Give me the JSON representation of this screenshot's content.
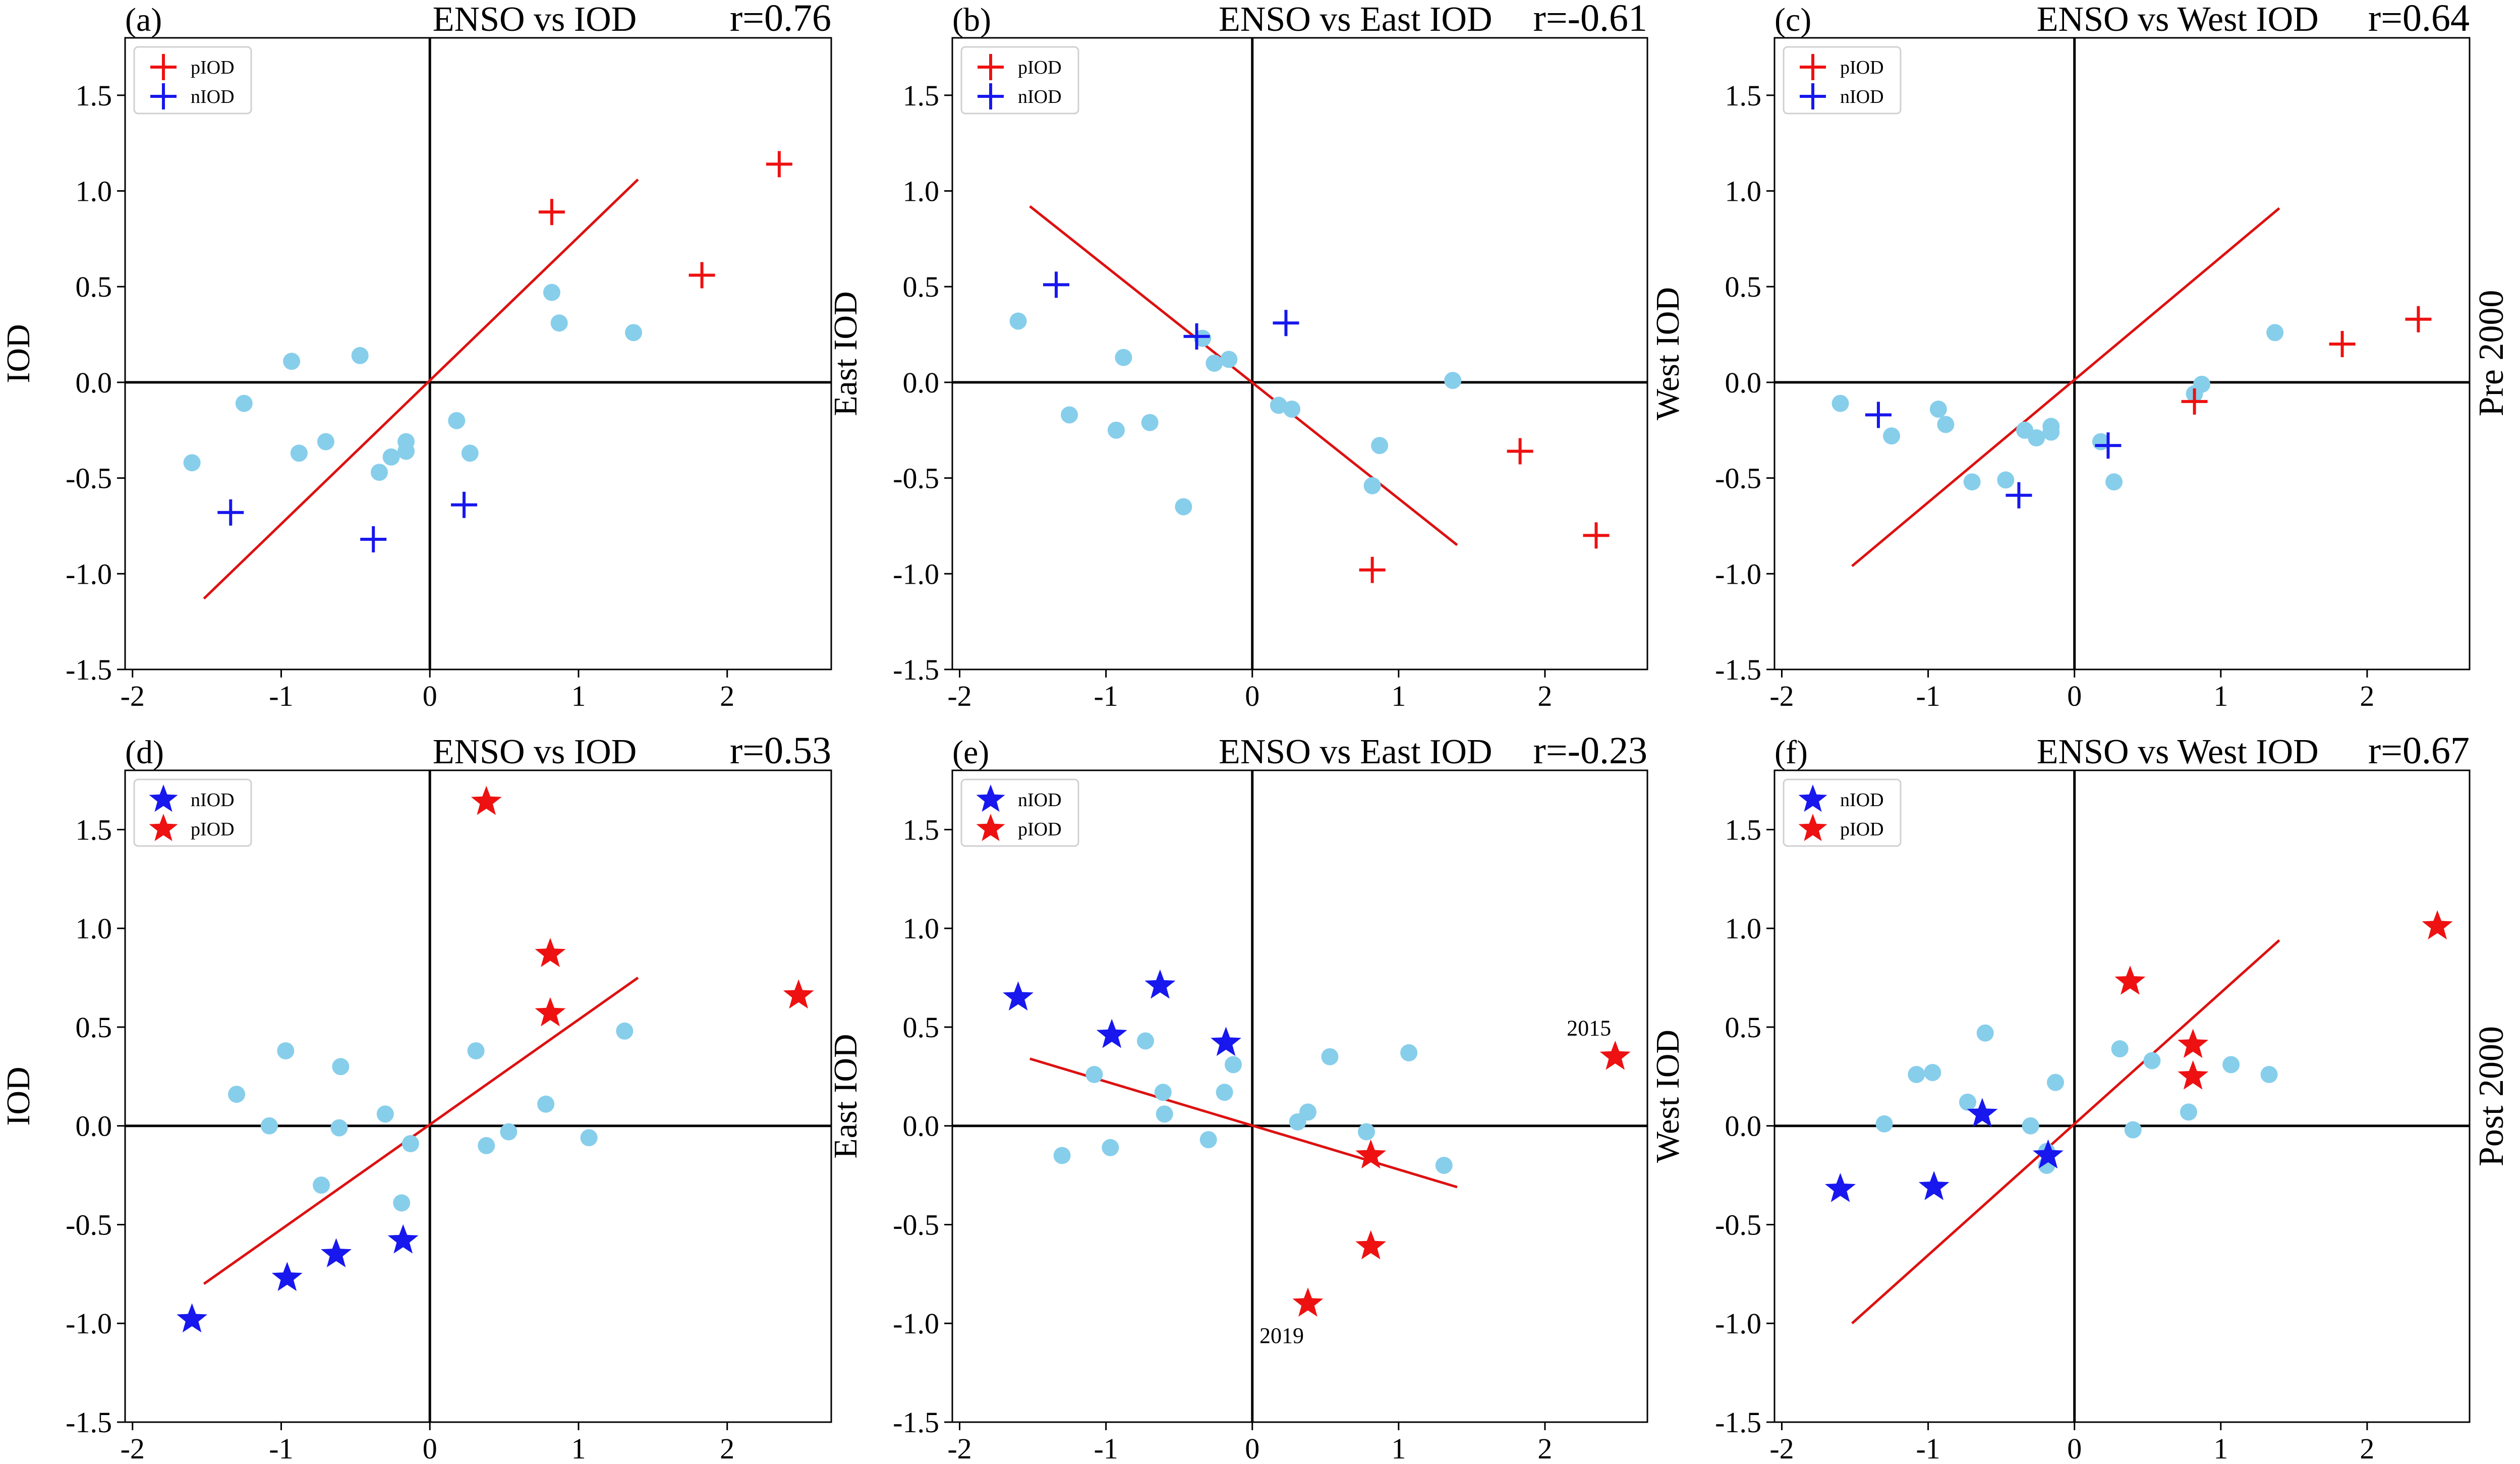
{
  "colors": {
    "pIOD": "#ee1111",
    "nIOD": "#1717ee",
    "other": "#87ceeb",
    "fit": "#dd1111",
    "axis": "#000000"
  },
  "row_labels": [
    "Pre 2000",
    "Post 2000"
  ],
  "chart_data": [
    {
      "panel": "(a)",
      "type": "scatter",
      "title": "ENSO vs IOD",
      "r_label": "r=0.76",
      "xlabel": "",
      "ylabel": "IOD",
      "xlim": [
        -2.05,
        2.7
      ],
      "ylim": [
        -1.5,
        1.8
      ],
      "xticks": [
        -2,
        -1,
        0,
        1,
        2
      ],
      "yticks": [
        -1.5,
        -1.0,
        -0.5,
        0.0,
        0.5,
        1.0,
        1.5
      ],
      "xtick_labels": [
        "-2",
        "-1",
        "0",
        "1",
        "2"
      ],
      "ytick_labels": [
        "-1.5",
        "-1.0",
        "-0.5",
        "0.0",
        "0.5",
        "1.0",
        "1.5"
      ],
      "marker": "plus",
      "legend": [
        {
          "label": "pIOD",
          "color": "pIOD"
        },
        {
          "label": "nIOD",
          "color": "nIOD"
        }
      ],
      "fit": {
        "x": [
          -1.52,
          1.4
        ],
        "y": [
          -1.13,
          1.06
        ]
      },
      "series": [
        {
          "name": "pIOD",
          "points": [
            [
              0.82,
              0.89
            ],
            [
              1.83,
              0.56
            ],
            [
              2.35,
              1.14
            ]
          ]
        },
        {
          "name": "nIOD",
          "points": [
            [
              -1.34,
              -0.68
            ],
            [
              -0.38,
              -0.82
            ],
            [
              0.23,
              -0.64
            ]
          ]
        },
        {
          "name": "other",
          "points": [
            [
              -1.6,
              -0.42
            ],
            [
              -1.25,
              -0.11
            ],
            [
              -0.93,
              0.11
            ],
            [
              -0.88,
              -0.37
            ],
            [
              -0.7,
              -0.31
            ],
            [
              -0.47,
              0.14
            ],
            [
              -0.34,
              -0.47
            ],
            [
              -0.26,
              -0.39
            ],
            [
              -0.16,
              -0.31
            ],
            [
              -0.16,
              -0.36
            ],
            [
              0.18,
              -0.2
            ],
            [
              0.27,
              -0.37
            ],
            [
              0.82,
              0.47
            ],
            [
              0.87,
              0.31
            ],
            [
              1.37,
              0.26
            ]
          ]
        }
      ],
      "annotations": []
    },
    {
      "panel": "(b)",
      "type": "scatter",
      "title": "ENSO vs East IOD",
      "r_label": "r=-0.61",
      "xlabel": "",
      "ylabel": "East IOD",
      "xlim": [
        -2.05,
        2.7
      ],
      "ylim": [
        -1.5,
        1.8
      ],
      "xticks": [
        -2,
        -1,
        0,
        1,
        2
      ],
      "yticks": [
        -1.5,
        -1.0,
        -0.5,
        0.0,
        0.5,
        1.0,
        1.5
      ],
      "xtick_labels": [
        "-2",
        "-1",
        "0",
        "1",
        "2"
      ],
      "ytick_labels": [
        "-1.5",
        "-1.0",
        "-0.5",
        "0.0",
        "0.5",
        "1.0",
        "1.5"
      ],
      "marker": "plus",
      "legend": [
        {
          "label": "pIOD",
          "color": "pIOD"
        },
        {
          "label": "nIOD",
          "color": "nIOD"
        }
      ],
      "fit": {
        "x": [
          -1.52,
          1.4
        ],
        "y": [
          0.92,
          -0.85
        ]
      },
      "series": [
        {
          "name": "pIOD",
          "points": [
            [
              0.82,
              -0.98
            ],
            [
              1.83,
              -0.36
            ],
            [
              2.35,
              -0.8
            ]
          ]
        },
        {
          "name": "nIOD",
          "points": [
            [
              -1.34,
              0.51
            ],
            [
              -0.38,
              0.24
            ],
            [
              0.23,
              0.31
            ]
          ]
        },
        {
          "name": "other",
          "points": [
            [
              -1.6,
              0.32
            ],
            [
              -1.25,
              -0.17
            ],
            [
              -0.93,
              -0.25
            ],
            [
              -0.88,
              0.13
            ],
            [
              -0.7,
              -0.21
            ],
            [
              -0.47,
              -0.65
            ],
            [
              -0.34,
              0.23
            ],
            [
              -0.26,
              0.1
            ],
            [
              -0.16,
              0.12
            ],
            [
              0.18,
              -0.12
            ],
            [
              0.27,
              -0.14
            ],
            [
              0.82,
              -0.54
            ],
            [
              0.87,
              -0.33
            ],
            [
              1.37,
              0.01
            ]
          ]
        }
      ],
      "annotations": []
    },
    {
      "panel": "(c)",
      "type": "scatter",
      "title": "ENSO vs West IOD",
      "r_label": "r=0.64",
      "xlabel": "",
      "ylabel": "West IOD",
      "xlim": [
        -2.05,
        2.7
      ],
      "ylim": [
        -1.5,
        1.8
      ],
      "xticks": [
        -2,
        -1,
        0,
        1,
        2
      ],
      "yticks": [
        -1.5,
        -1.0,
        -0.5,
        0.0,
        0.5,
        1.0,
        1.5
      ],
      "xtick_labels": [
        "-2",
        "-1",
        "0",
        "1",
        "2"
      ],
      "ytick_labels": [
        "-1.5",
        "-1.0",
        "-0.5",
        "0.0",
        "0.5",
        "1.0",
        "1.5"
      ],
      "marker": "plus",
      "legend": [
        {
          "label": "pIOD",
          "color": "pIOD"
        },
        {
          "label": "nIOD",
          "color": "nIOD"
        }
      ],
      "fit": {
        "x": [
          -1.52,
          1.4
        ],
        "y": [
          -0.96,
          0.91
        ]
      },
      "series": [
        {
          "name": "pIOD",
          "points": [
            [
              0.82,
              -0.1
            ],
            [
              1.83,
              0.2
            ],
            [
              2.35,
              0.33
            ]
          ]
        },
        {
          "name": "nIOD",
          "points": [
            [
              -1.34,
              -0.17
            ],
            [
              -0.38,
              -0.59
            ],
            [
              0.23,
              -0.33
            ]
          ]
        },
        {
          "name": "other",
          "points": [
            [
              -1.6,
              -0.11
            ],
            [
              -1.25,
              -0.28
            ],
            [
              -0.93,
              -0.14
            ],
            [
              -0.88,
              -0.22
            ],
            [
              -0.7,
              -0.52
            ],
            [
              -0.47,
              -0.51
            ],
            [
              -0.34,
              -0.25
            ],
            [
              -0.26,
              -0.29
            ],
            [
              -0.16,
              -0.23
            ],
            [
              -0.16,
              -0.26
            ],
            [
              0.18,
              -0.31
            ],
            [
              0.27,
              -0.52
            ],
            [
              0.82,
              -0.06
            ],
            [
              0.87,
              -0.01
            ],
            [
              1.37,
              0.26
            ]
          ]
        }
      ],
      "annotations": []
    },
    {
      "panel": "(d)",
      "type": "scatter",
      "title": "ENSO vs IOD",
      "r_label": "r=0.53",
      "xlabel": "",
      "ylabel": "IOD",
      "xlim": [
        -2.05,
        2.7
      ],
      "ylim": [
        -1.5,
        1.8
      ],
      "xticks": [
        -2,
        -1,
        0,
        1,
        2
      ],
      "yticks": [
        -1.5,
        -1.0,
        -0.5,
        0.0,
        0.5,
        1.0,
        1.5
      ],
      "xtick_labels": [
        "-2",
        "-1",
        "0",
        "1",
        "2"
      ],
      "ytick_labels": [
        "-1.5",
        "-1.0",
        "-0.5",
        "0.0",
        "0.5",
        "1.0",
        "1.5"
      ],
      "marker": "star",
      "legend": [
        {
          "label": "nIOD",
          "color": "nIOD"
        },
        {
          "label": "pIOD",
          "color": "pIOD"
        }
      ],
      "fit": {
        "x": [
          -1.52,
          1.4
        ],
        "y": [
          -0.8,
          0.75
        ]
      },
      "series": [
        {
          "name": "nIOD",
          "points": [
            [
              -1.6,
              -0.98
            ],
            [
              -0.96,
              -0.77
            ],
            [
              -0.63,
              -0.65
            ],
            [
              -0.18,
              -0.58
            ]
          ]
        },
        {
          "name": "pIOD",
          "points": [
            [
              0.38,
              1.64
            ],
            [
              0.81,
              0.87
            ],
            [
              0.81,
              0.57
            ],
            [
              2.48,
              0.66
            ]
          ]
        },
        {
          "name": "other",
          "points": [
            [
              -1.3,
              0.16
            ],
            [
              -1.08,
              0.0
            ],
            [
              -0.97,
              0.38
            ],
            [
              -0.73,
              -0.3
            ],
            [
              -0.61,
              -0.01
            ],
            [
              -0.6,
              0.3
            ],
            [
              -0.3,
              0.06
            ],
            [
              -0.19,
              -0.39
            ],
            [
              -0.13,
              -0.09
            ],
            [
              0.31,
              0.38
            ],
            [
              0.38,
              -0.1
            ],
            [
              0.53,
              -0.03
            ],
            [
              0.78,
              0.11
            ],
            [
              1.07,
              -0.06
            ],
            [
              1.31,
              0.48
            ]
          ]
        }
      ],
      "annotations": []
    },
    {
      "panel": "(e)",
      "type": "scatter",
      "title": "ENSO vs East IOD",
      "r_label": "r=-0.23",
      "xlabel": "",
      "ylabel": "East IOD",
      "xlim": [
        -2.05,
        2.7
      ],
      "ylim": [
        -1.5,
        1.8
      ],
      "xticks": [
        -2,
        -1,
        0,
        1,
        2
      ],
      "yticks": [
        -1.5,
        -1.0,
        -0.5,
        0.0,
        0.5,
        1.0,
        1.5
      ],
      "xtick_labels": [
        "-2",
        "-1",
        "0",
        "1",
        "2"
      ],
      "ytick_labels": [
        "-1.5",
        "-1.0",
        "-0.5",
        "0.0",
        "0.5",
        "1.0",
        "1.5"
      ],
      "marker": "star",
      "legend": [
        {
          "label": "nIOD",
          "color": "nIOD"
        },
        {
          "label": "pIOD",
          "color": "pIOD"
        }
      ],
      "fit": {
        "x": [
          -1.52,
          1.4
        ],
        "y": [
          0.34,
          -0.31
        ]
      },
      "series": [
        {
          "name": "nIOD",
          "points": [
            [
              -1.6,
              0.65
            ],
            [
              -0.96,
              0.46
            ],
            [
              -0.63,
              0.71
            ],
            [
              -0.18,
              0.42
            ]
          ]
        },
        {
          "name": "pIOD",
          "points": [
            [
              0.38,
              -0.9
            ],
            [
              0.81,
              -0.15
            ],
            [
              0.81,
              -0.61
            ],
            [
              2.48,
              0.35
            ]
          ]
        },
        {
          "name": "other",
          "points": [
            [
              -1.3,
              -0.15
            ],
            [
              -1.08,
              0.26
            ],
            [
              -0.97,
              -0.11
            ],
            [
              -0.73,
              0.43
            ],
            [
              -0.61,
              0.17
            ],
            [
              -0.6,
              0.06
            ],
            [
              -0.3,
              -0.07
            ],
            [
              -0.19,
              0.17
            ],
            [
              -0.13,
              0.31
            ],
            [
              0.31,
              0.02
            ],
            [
              0.38,
              0.07
            ],
            [
              0.53,
              0.35
            ],
            [
              0.78,
              -0.03
            ],
            [
              1.07,
              0.37
            ],
            [
              1.31,
              -0.2
            ]
          ]
        }
      ],
      "annotations": [
        {
          "text": "2015",
          "x": 2.48,
          "y": 0.35,
          "anchor": "above-left"
        },
        {
          "text": "2019",
          "x": 0.38,
          "y": -0.9,
          "anchor": "below-left"
        }
      ]
    },
    {
      "panel": "(f)",
      "type": "scatter",
      "title": "ENSO vs West IOD",
      "r_label": "r=0.67",
      "xlabel": "",
      "ylabel": "West IOD",
      "xlim": [
        -2.05,
        2.7
      ],
      "ylim": [
        -1.5,
        1.8
      ],
      "xticks": [
        -2,
        -1,
        0,
        1,
        2
      ],
      "yticks": [
        -1.5,
        -1.0,
        -0.5,
        0.0,
        0.5,
        1.0,
        1.5
      ],
      "xtick_labels": [
        "-2",
        "-1",
        "0",
        "1",
        "2"
      ],
      "ytick_labels": [
        "-1.5",
        "-1.0",
        "-0.5",
        "0.0",
        "0.5",
        "1.0",
        "1.5"
      ],
      "marker": "star",
      "legend": [
        {
          "label": "nIOD",
          "color": "nIOD"
        },
        {
          "label": "pIOD",
          "color": "pIOD"
        }
      ],
      "fit": {
        "x": [
          -1.52,
          1.4
        ],
        "y": [
          -1.0,
          0.94
        ]
      },
      "series": [
        {
          "name": "nIOD",
          "points": [
            [
              -1.6,
              -0.32
            ],
            [
              -0.96,
              -0.31
            ],
            [
              -0.63,
              0.06
            ],
            [
              -0.18,
              -0.15
            ]
          ]
        },
        {
          "name": "pIOD",
          "points": [
            [
              0.38,
              0.73
            ],
            [
              0.81,
              0.41
            ],
            [
              0.81,
              0.25
            ],
            [
              2.48,
              1.01
            ]
          ]
        },
        {
          "name": "other",
          "points": [
            [
              -1.3,
              0.01
            ],
            [
              -1.08,
              0.26
            ],
            [
              -0.97,
              0.27
            ],
            [
              -0.73,
              0.12
            ],
            [
              -0.61,
              0.47
            ],
            [
              -0.3,
              0.0
            ],
            [
              -0.19,
              -0.2
            ],
            [
              -0.13,
              0.22
            ],
            [
              0.31,
              0.39
            ],
            [
              0.4,
              -0.02
            ],
            [
              0.53,
              0.33
            ],
            [
              0.78,
              0.07
            ],
            [
              1.07,
              0.31
            ],
            [
              1.33,
              0.26
            ],
            [
              -0.19,
              -0.13
            ]
          ]
        }
      ],
      "annotations": []
    }
  ]
}
